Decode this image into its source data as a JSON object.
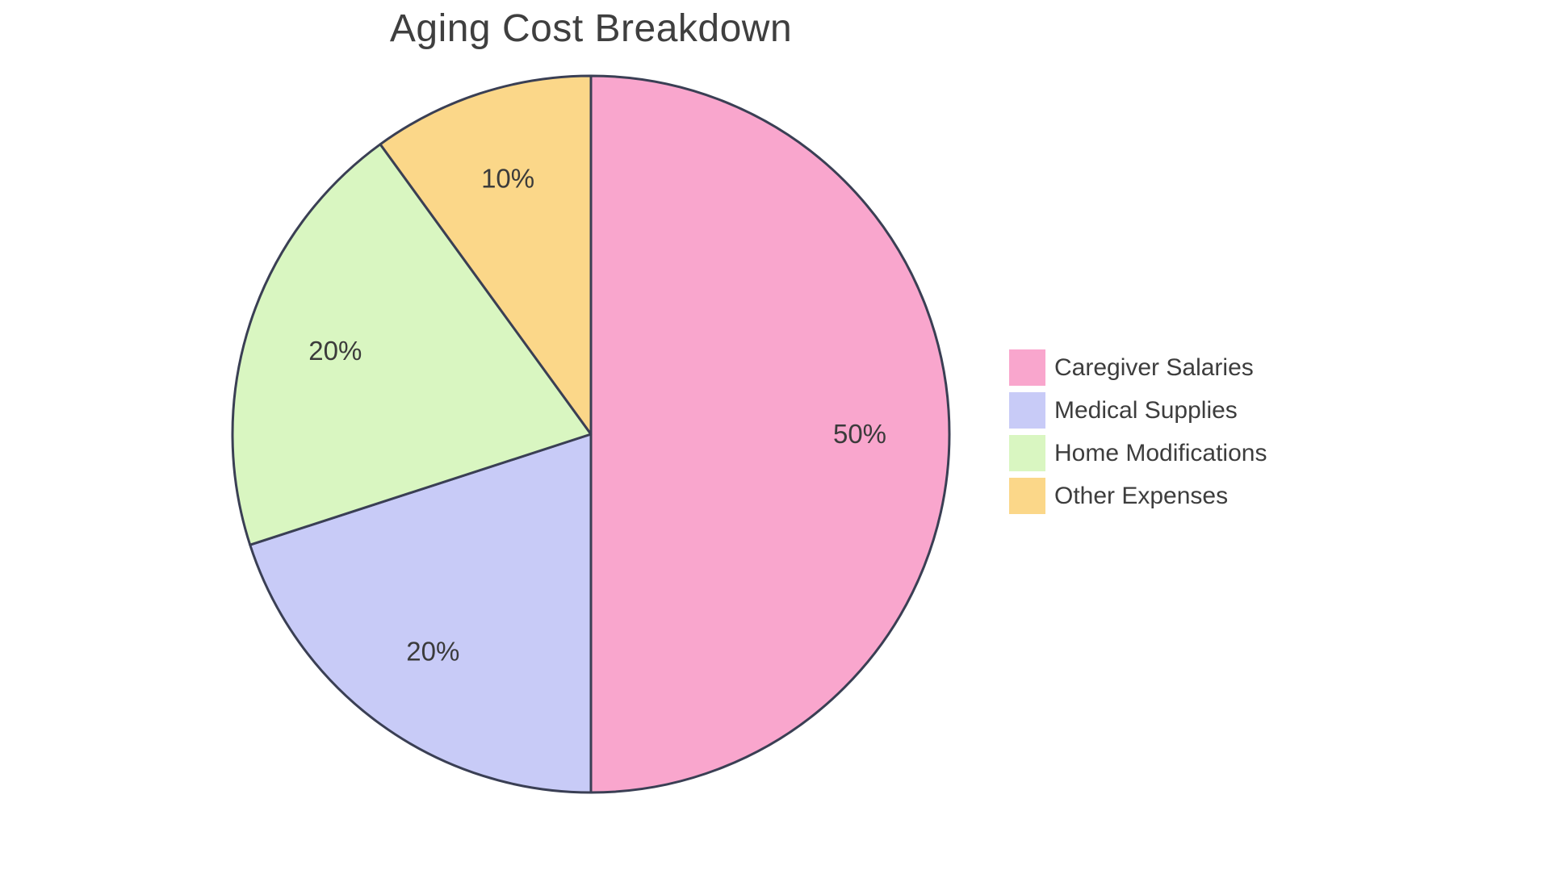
{
  "page": {
    "background": "#FFFFFF"
  },
  "chart_data": {
    "type": "pie",
    "title": "Aging Cost Breakdown",
    "slices": [
      {
        "label": "Caregiver Salaries",
        "value": 50,
        "pct_label": "50%",
        "color": "#F9A6CD"
      },
      {
        "label": "Medical Supplies",
        "value": 20,
        "pct_label": "20%",
        "color": "#C8CBF7"
      },
      {
        "label": "Home Modifications",
        "value": 20,
        "pct_label": "20%",
        "color": "#D9F6C1"
      },
      {
        "label": "Other Expenses",
        "value": 10,
        "pct_label": "10%",
        "color": "#FBD789"
      }
    ],
    "start_angle_deg": -90,
    "direction": "clockwise",
    "stroke_color": "#3A3F54",
    "slice_label_color": "#3B3B3B",
    "title_color": "#3F3F3F",
    "legend_text_color": "#3D3D3D",
    "legend_position": "right",
    "labels_inside": true
  }
}
